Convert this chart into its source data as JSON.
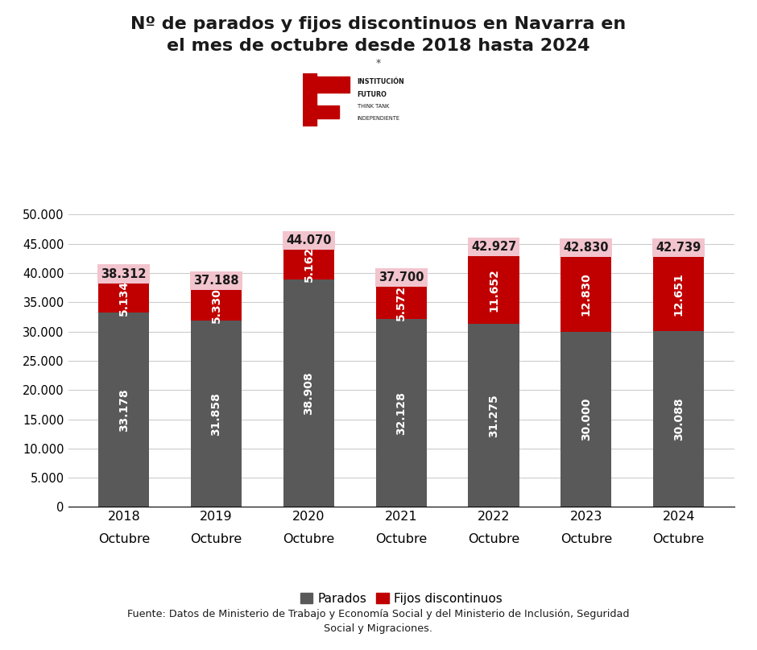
{
  "title_line1": "Nº de parados y fijos discontinuos en Navarra en",
  "title_line2": "el mes de octubre desde 2018 hasta 2024",
  "years": [
    "2018",
    "2019",
    "2020",
    "2021",
    "2022",
    "2023",
    "2024"
  ],
  "xlabel_sub": "Octubre",
  "parados": [
    33178,
    31858,
    38908,
    32128,
    31275,
    30000,
    30088
  ],
  "fijos": [
    5134,
    5330,
    5162,
    5572,
    11652,
    12830,
    12651
  ],
  "totals": [
    38312,
    37188,
    44070,
    37700,
    42927,
    42830,
    42739
  ],
  "bar_color_parados": "#595959",
  "bar_color_fijos": "#C00000",
  "total_label_bg": "#F2C4CE",
  "ylim": [
    0,
    50000
  ],
  "yticks": [
    0,
    5000,
    10000,
    15000,
    20000,
    25000,
    30000,
    35000,
    40000,
    45000,
    50000
  ],
  "legend_parados": "Parados",
  "legend_fijos": "Fijos discontinuos",
  "source_text": "Fuente: Datos de Ministerio de Trabajo y Economía Social y del Ministerio de Inclusión, Seguridad\nSocial y Migraciones.",
  "bg_color": "#FFFFFF",
  "grid_color": "#CCCCCC",
  "title_fontsize": 16,
  "bar_width": 0.55,
  "label_fontsize": 10,
  "total_fontsize": 10.5
}
